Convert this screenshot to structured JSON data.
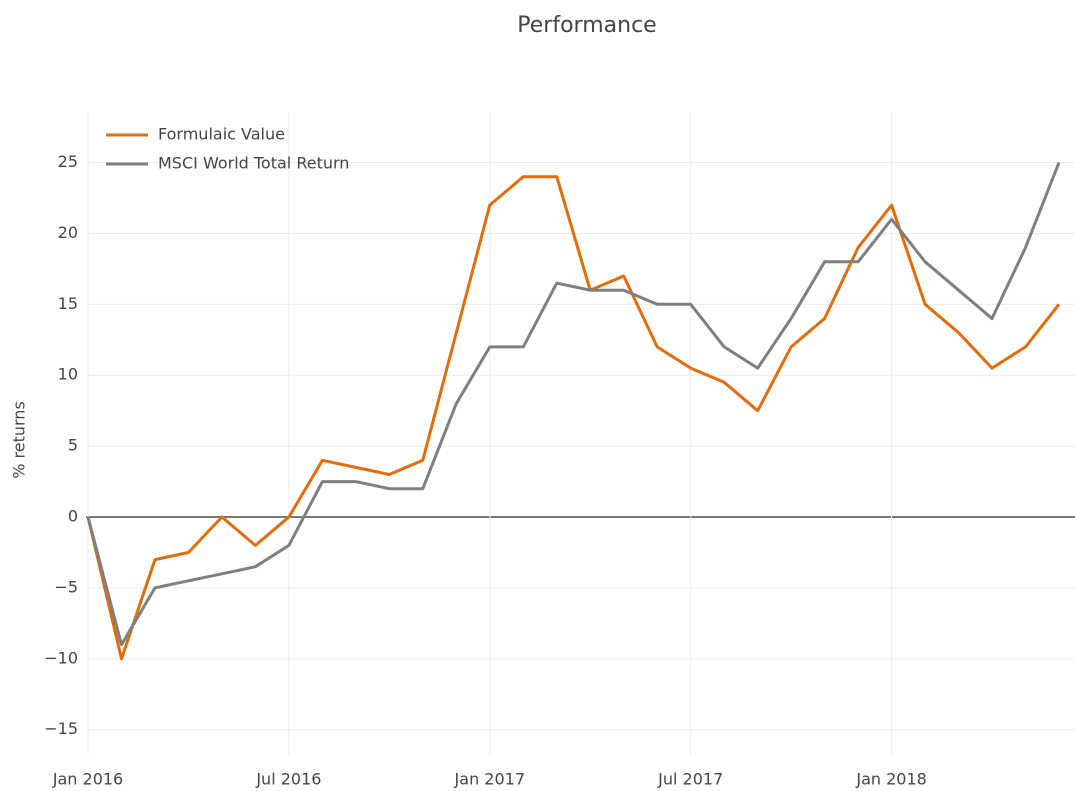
{
  "chart_data": {
    "type": "line",
    "title": "Performance",
    "y_label": "% returns",
    "x": [
      "2016-01",
      "2016-02",
      "2016-03",
      "2016-04",
      "2016-05",
      "2016-06",
      "2016-07",
      "2016-08",
      "2016-09",
      "2016-10",
      "2016-11",
      "2016-12",
      "2017-01",
      "2017-02",
      "2017-03",
      "2017-04",
      "2017-05",
      "2017-06",
      "2017-07",
      "2017-08",
      "2017-09",
      "2017-10",
      "2017-11",
      "2017-12",
      "2018-01",
      "2018-02",
      "2018-03",
      "2018-04",
      "2018-05",
      "2018-06"
    ],
    "series": [
      {
        "name": "Formulaic Value",
        "color": "#e36c0a",
        "values": [
          0,
          -10,
          -3,
          -2.5,
          0,
          -2,
          0,
          4,
          3.5,
          3,
          4,
          13,
          22,
          24,
          24,
          16,
          17,
          12,
          10.5,
          9.5,
          7.5,
          12,
          14,
          19,
          22,
          15,
          13,
          10.5,
          12,
          15
        ]
      },
      {
        "name": "MSCI World Total Return",
        "color": "#7f7f7f",
        "values": [
          0,
          -9,
          -5,
          -4.5,
          -4,
          -3.5,
          -2,
          2.5,
          2.5,
          2,
          2,
          8,
          12,
          12,
          16.5,
          16,
          16,
          15,
          15,
          12,
          10.5,
          14,
          18,
          18,
          21,
          18,
          16,
          14,
          19,
          25
        ]
      }
    ],
    "xlim": [
      "2016-01",
      "2018-06"
    ],
    "xticks": [
      {
        "value": "2016-01",
        "label": "Jan 2016"
      },
      {
        "value": "2016-07",
        "label": "Jul 2016"
      },
      {
        "value": "2017-01",
        "label": "Jan 2017"
      },
      {
        "value": "2017-07",
        "label": "Jul 2017"
      },
      {
        "value": "2018-01",
        "label": "Jan 2018"
      }
    ],
    "ylim": [
      -16.5,
      28
    ],
    "yticks": [
      {
        "value": -15,
        "label": "−15"
      },
      {
        "value": -10,
        "label": "−10"
      },
      {
        "value": -5,
        "label": "−5"
      },
      0,
      5,
      10,
      15,
      20,
      25
    ],
    "grid": true,
    "legend": "top-left"
  }
}
